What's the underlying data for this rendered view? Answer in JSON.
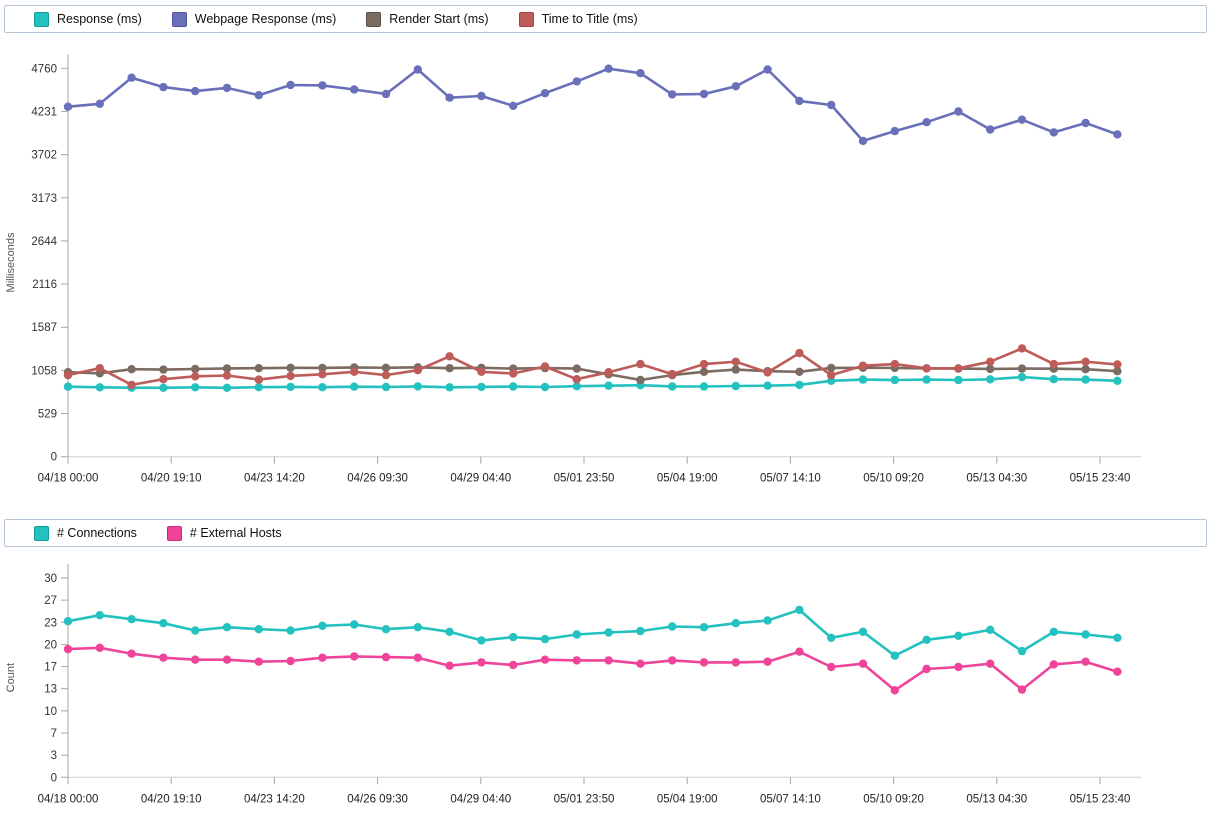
{
  "chart_data": [
    {
      "id": "response-times",
      "type": "line",
      "ylabel": "Milliseconds",
      "y_max": 4760,
      "y_ticks": [
        0,
        529,
        1058,
        1587,
        2116,
        2644,
        3173,
        3702,
        4231,
        4760
      ],
      "x_labels": [
        "04/18 00:00",
        "04/20 19:10",
        "04/23 14:20",
        "04/26 09:30",
        "04/29 04:40",
        "05/01 23:50",
        "05/04 19:00",
        "05/07 14:10",
        "05/10 09:20",
        "05/13 04:30",
        "05/15 23:40"
      ],
      "legend_position": "top",
      "grid": false,
      "series": [
        {
          "name": "Response (ms)",
          "color": "#23c1bf",
          "swatch_border": "#0f9c9a",
          "values": [
            858,
            850,
            846,
            844,
            850,
            844,
            852,
            856,
            852,
            858,
            854,
            862,
            850,
            856,
            860,
            854,
            864,
            870,
            876,
            862,
            860,
            866,
            870,
            880,
            930,
            945,
            940,
            945,
            940,
            948,
            975,
            950,
            945,
            930
          ]
        },
        {
          "name": "Webpage Response (ms)",
          "color": "#6a6fb9",
          "swatch_border": "#50549c",
          "values": [
            4290,
            4325,
            4645,
            4530,
            4480,
            4520,
            4430,
            4555,
            4550,
            4500,
            4445,
            4745,
            4400,
            4420,
            4300,
            4455,
            4600,
            4755,
            4700,
            4440,
            4445,
            4540,
            4745,
            4360,
            4310,
            3870,
            3990,
            4100,
            4230,
            4010,
            4130,
            3975,
            4090,
            3950
          ]
        },
        {
          "name": "Render Start (ms)",
          "color": "#7c6b61",
          "swatch_border": "#5d4f46",
          "values": [
            1035,
            1022,
            1072,
            1068,
            1075,
            1082,
            1085,
            1090,
            1088,
            1094,
            1090,
            1096,
            1085,
            1090,
            1080,
            1086,
            1080,
            1010,
            940,
            1000,
            1040,
            1068,
            1048,
            1040,
            1088,
            1090,
            1088,
            1082,
            1080,
            1076,
            1080,
            1078,
            1072,
            1048
          ]
        },
        {
          "name": "Time to Title (ms)",
          "color": "#bd5c59",
          "swatch_border": "#9c4543",
          "values": [
            1000,
            1085,
            880,
            950,
            985,
            995,
            945,
            990,
            1010,
            1040,
            1000,
            1060,
            1230,
            1040,
            1020,
            1105,
            950,
            1035,
            1135,
            1012,
            1135,
            1164,
            1033,
            1270,
            1000,
            1115,
            1135,
            1083,
            1083,
            1164,
            1327,
            1135,
            1164,
            1130
          ]
        }
      ]
    },
    {
      "id": "connections",
      "type": "line",
      "ylabel": "Count",
      "y_max": 30,
      "y_ticks": [
        0,
        3,
        7,
        10,
        13,
        17,
        20,
        23,
        27,
        30
      ],
      "x_labels": [
        "04/18 00:00",
        "04/20 19:10",
        "04/23 14:20",
        "04/26 09:30",
        "04/29 04:40",
        "05/01 23:50",
        "05/04 19:00",
        "05/07 14:10",
        "05/10 09:20",
        "05/13 04:30",
        "05/15 23:40"
      ],
      "legend_position": "top",
      "grid": false,
      "series": [
        {
          "name": "# Connections",
          "color": "#23c1bf",
          "swatch_border": "#0f9c9a",
          "values": [
            23.5,
            24.4,
            23.8,
            23.2,
            22.1,
            22.6,
            22.3,
            22.1,
            22.8,
            23.0,
            22.3,
            22.6,
            21.9,
            20.6,
            21.1,
            20.8,
            21.5,
            21.8,
            22.0,
            22.7,
            22.6,
            23.2,
            23.6,
            25.2,
            21.0,
            21.9,
            18.3,
            20.7,
            21.3,
            22.2,
            19.0,
            21.9,
            21.5,
            21.0
          ]
        },
        {
          "name": "# External Hosts",
          "color": "#ef4499",
          "swatch_border": "#c42f7c",
          "values": [
            19.3,
            19.5,
            18.6,
            18.0,
            17.7,
            17.7,
            17.4,
            17.5,
            18.0,
            18.2,
            18.1,
            18.0,
            16.8,
            17.3,
            16.9,
            17.7,
            17.6,
            17.6,
            17.1,
            17.6,
            17.3,
            17.3,
            17.4,
            18.9,
            16.6,
            17.1,
            13.1,
            16.3,
            16.6,
            17.1,
            13.2,
            17.0,
            17.4,
            15.9
          ]
        }
      ]
    }
  ]
}
